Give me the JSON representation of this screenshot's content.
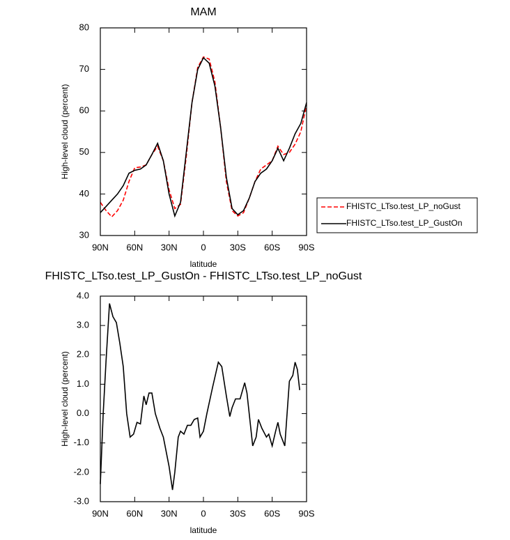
{
  "chart_data": [
    {
      "type": "line",
      "title": "MAM",
      "xlabel": "latitude",
      "ylabel": "High-level cloud (percent)",
      "x": [
        90,
        85,
        80,
        75,
        70,
        65,
        60,
        55,
        50,
        45,
        40,
        35,
        30,
        25,
        20,
        15,
        10,
        5,
        0,
        -5,
        -10,
        -15,
        -20,
        -25,
        -30,
        -35,
        -40,
        -45,
        -50,
        -55,
        -60,
        -65,
        -70,
        -75,
        -80,
        -85,
        -90
      ],
      "xlim": [
        90,
        -90
      ],
      "xticks": [
        {
          "value": 90,
          "label": "90N"
        },
        {
          "value": 60,
          "label": "60N"
        },
        {
          "value": 30,
          "label": "30N"
        },
        0,
        {
          "value": -30,
          "label": "30S"
        },
        {
          "value": -60,
          "label": "60S"
        },
        {
          "value": -90,
          "label": "90S"
        }
      ],
      "ylim": [
        30,
        80
      ],
      "yticks": [
        30,
        40,
        50,
        60,
        70,
        80
      ],
      "legend": "outside-right",
      "series": [
        {
          "name": "FHISTC_LTso.test_LP_noGust",
          "color": "#ff0000",
          "line_style": "dashed",
          "values": [
            38,
            36,
            34.5,
            36,
            38.5,
            43,
            46.3,
            46.5,
            47,
            49.5,
            51.5,
            48,
            41,
            36.5,
            37.5,
            49,
            62,
            70.5,
            73,
            72.5,
            67,
            56,
            43,
            36,
            34.7,
            35.5,
            39,
            43,
            46,
            47,
            48,
            51.5,
            49.5,
            50,
            52,
            55,
            61.5
          ]
        },
        {
          "name": "FHISTC_LTso.test_LP_GustOn",
          "color": "#000000",
          "line_style": "solid",
          "values": [
            35.5,
            37,
            38.5,
            40,
            42,
            45,
            45.7,
            46,
            47,
            49.5,
            52.2,
            48,
            40,
            34.7,
            38,
            50,
            62,
            70,
            72.8,
            71.5,
            66,
            56,
            44,
            36.5,
            35,
            36,
            39,
            43,
            45,
            46,
            48,
            51,
            48,
            51,
            54.5,
            57,
            62
          ]
        }
      ]
    },
    {
      "type": "line",
      "title": "FHISTC_LTso.test_LP_GustOn - FHISTC_LTso.test_LP_noGust",
      "xlabel": "latitude",
      "ylabel": "High-level cloud (percent)",
      "x": [
        90,
        87.5,
        85,
        82,
        79,
        76,
        73,
        70,
        67,
        64,
        61,
        58,
        55,
        52,
        50,
        47.5,
        45,
        42,
        38,
        35,
        30,
        27,
        25,
        22,
        20,
        17,
        14,
        11,
        8,
        5,
        3,
        0,
        -3,
        -8,
        -13,
        -16,
        -20,
        -23,
        -25,
        -28,
        -32,
        -36,
        -38,
        -43,
        -46,
        -48,
        -51,
        -55,
        -57,
        -60,
        -63,
        -65,
        -67,
        -71,
        -75,
        -78,
        -80,
        -82,
        -84
      ],
      "xlim": [
        90,
        -90
      ],
      "xticks": [
        {
          "value": 90,
          "label": "90N"
        },
        {
          "value": 60,
          "label": "60N"
        },
        {
          "value": 30,
          "label": "30N"
        },
        0,
        {
          "value": -30,
          "label": "30S"
        },
        {
          "value": -60,
          "label": "60S"
        },
        {
          "value": -90,
          "label": "90S"
        }
      ],
      "ylim": [
        -3,
        4
      ],
      "yticks": [
        {
          "value": -3,
          "label": "-3.0"
        },
        {
          "value": -2,
          "label": "-2.0"
        },
        {
          "value": -1,
          "label": "-1.0"
        },
        {
          "value": 0,
          "label": "0.0"
        },
        {
          "value": 1,
          "label": "1.0"
        },
        {
          "value": 2,
          "label": "2.0"
        },
        {
          "value": 3,
          "label": "3.0"
        },
        {
          "value": 4,
          "label": "4.0"
        }
      ],
      "series": [
        {
          "color": "#000000",
          "line_style": "solid",
          "values": [
            -2.4,
            0,
            1.8,
            3.75,
            3.3,
            3.1,
            2.4,
            1.6,
            0,
            -0.8,
            -0.7,
            -0.3,
            -0.35,
            0.6,
            0.3,
            0.7,
            0.7,
            0,
            -0.5,
            -0.8,
            -1.8,
            -2.6,
            -2,
            -0.8,
            -0.6,
            -0.7,
            -0.4,
            -0.4,
            -0.2,
            -0.15,
            -0.8,
            -0.6,
            0,
            0.9,
            1.75,
            1.6,
            0.6,
            -0.1,
            0.2,
            0.5,
            0.5,
            1.05,
            0.7,
            -1.1,
            -0.8,
            -0.2,
            -0.5,
            -0.8,
            -0.7,
            -1.1,
            -0.6,
            -0.3,
            -0.7,
            -1.1,
            1.1,
            1.3,
            1.75,
            1.5,
            0.8
          ]
        }
      ]
    }
  ]
}
